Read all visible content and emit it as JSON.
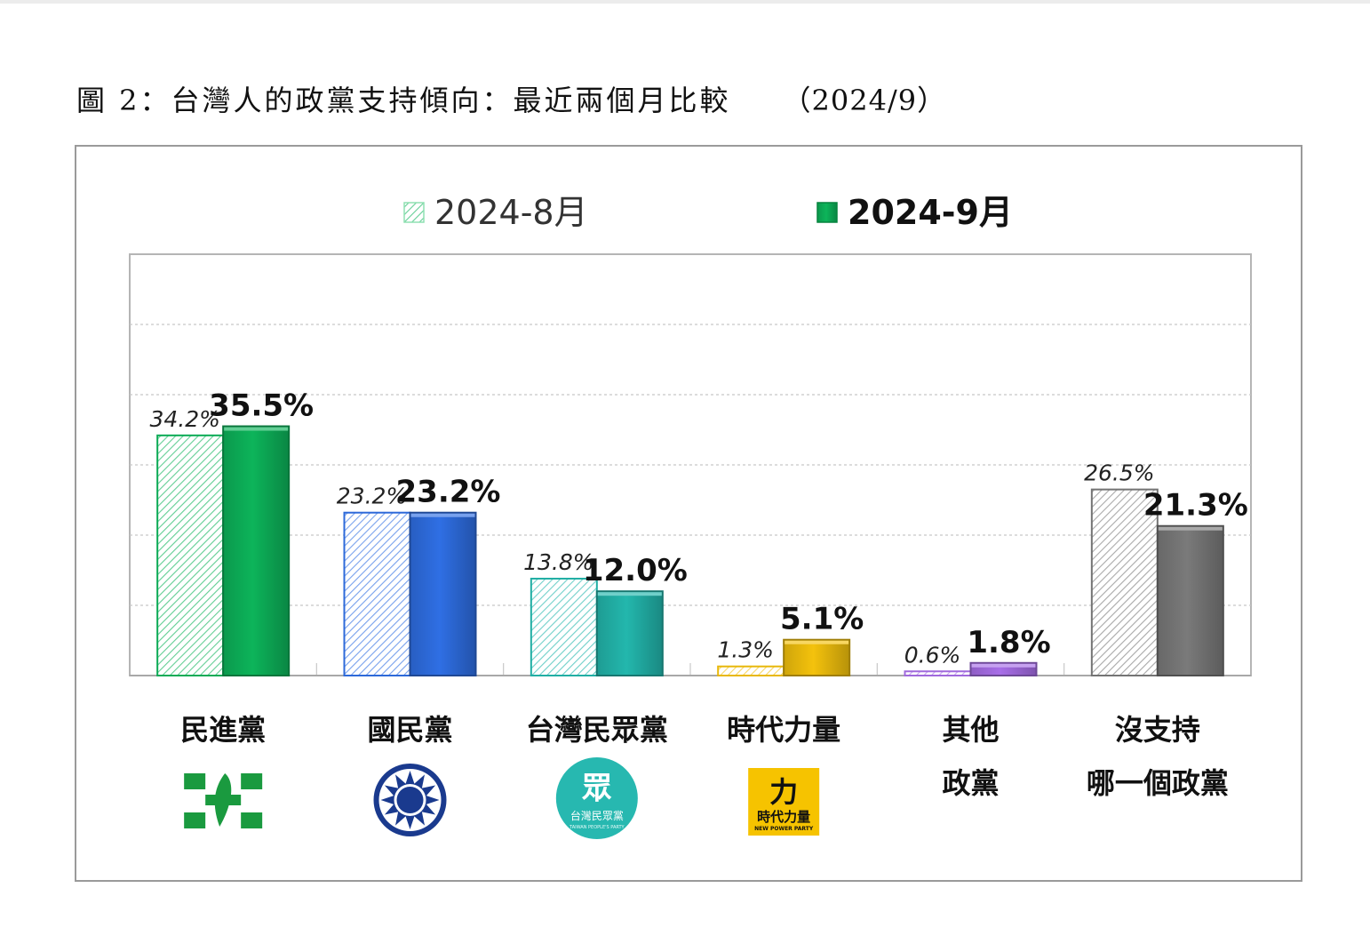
{
  "figure": {
    "title": "圖 2：台灣人的政黨支持傾向：最近兩個月比較",
    "date": "（2024/9）"
  },
  "chart_data": {
    "type": "bar",
    "categories": [
      [
        "民進黨"
      ],
      [
        "國民黨"
      ],
      [
        "台灣民眾黨"
      ],
      [
        "時代力量"
      ],
      [
        "其他",
        "政黨"
      ],
      [
        "沒支持",
        "哪一個政黨"
      ]
    ],
    "series": [
      {
        "name": "2024-8月",
        "values": [
          34.2,
          23.2,
          13.8,
          1.3,
          0.6,
          26.5
        ],
        "labels": [
          "34.2%",
          "23.2%",
          "13.8%",
          "1.3%",
          "0.6%",
          "26.5%"
        ]
      },
      {
        "name": "2024-9月",
        "values": [
          35.5,
          23.2,
          12.0,
          5.1,
          1.8,
          21.3
        ],
        "labels": [
          "35.5%",
          "23.2%",
          "12.0%",
          "5.1%",
          "1.8%",
          "21.3%"
        ]
      }
    ],
    "ylim": [
      0,
      60
    ],
    "grid": true,
    "legend": "top-center",
    "colors": [
      "#0db45a",
      "#2f6fe4",
      "#23b7ad",
      "#f4c20d",
      "#a86ee8",
      "#7a7a7a"
    ],
    "logos": [
      "dpp-logo",
      "kmt-logo",
      "tpp-logo",
      "npp-logo",
      null,
      null
    ]
  },
  "logos": {
    "tpp": {
      "mark": "眾",
      "name": "台灣民眾黨",
      "english": "TAIWAN PEOPLE'S PARTY"
    },
    "npp": {
      "mark": "力",
      "name": "時代力量",
      "english": "NEW POWER PARTY"
    }
  }
}
